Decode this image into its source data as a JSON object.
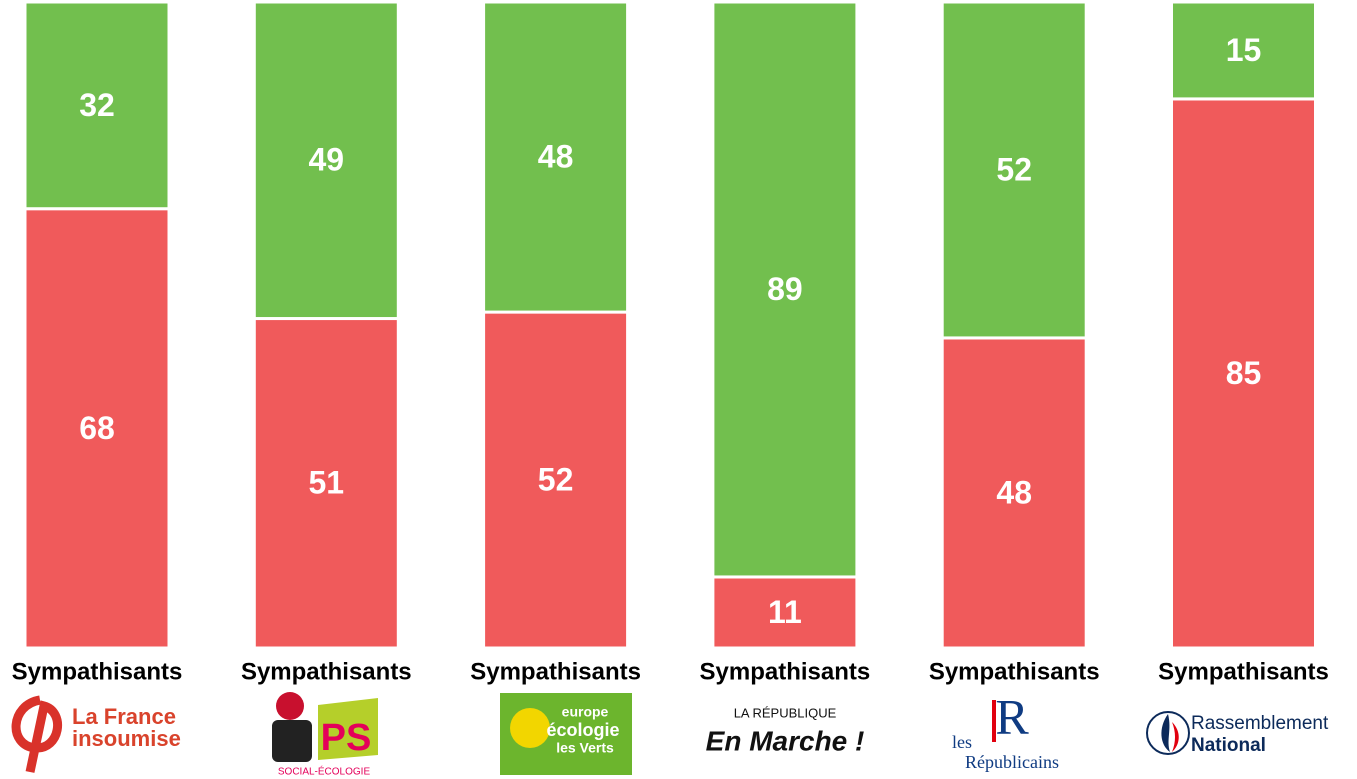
{
  "chart_data": {
    "type": "stacked_bar",
    "categories": [
      "Sympathisants",
      "Sympathisants",
      "Sympathisants",
      "Sympathisants",
      "Sympathisants",
      "Sympathisants"
    ],
    "series": [
      {
        "color": "#f05a5b",
        "values": [
          68,
          51,
          52,
          11,
          48,
          85
        ]
      },
      {
        "color": "#72bf4e",
        "values": [
          32,
          49,
          48,
          89,
          52,
          15
        ]
      }
    ],
    "ylim": [
      0,
      100
    ],
    "logos": [
      [
        "La France",
        "insoumise"
      ],
      [
        "PS",
        "SOCIAL-ÉCOLOGIE"
      ],
      [
        "europe",
        "écologie",
        "les Verts"
      ],
      [
        "LA RÉPUBLIQUE",
        "En Marche !"
      ],
      [
        "les",
        "R",
        "Républicains"
      ],
      [
        "Rassemblement",
        "National"
      ]
    ]
  }
}
